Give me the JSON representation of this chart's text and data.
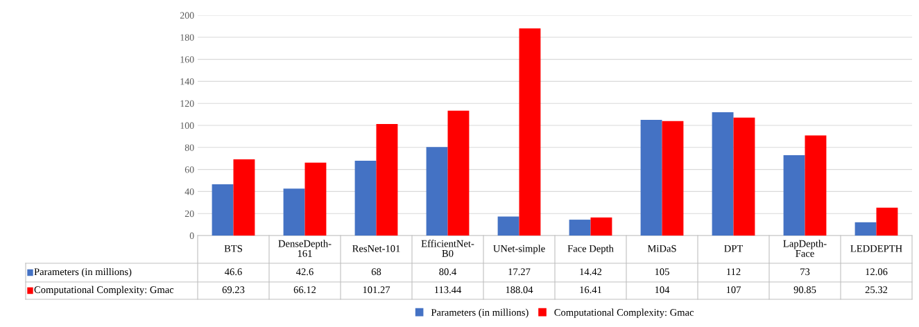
{
  "chart_data": {
    "type": "bar",
    "categories": [
      "BTS",
      "DenseDepth-161",
      "ResNet-101",
      "EfficientNet-B0",
      "UNet-simple",
      "Face Depth",
      "MiDaS",
      "DPT",
      "LapDepth-Face",
      "LEDDEPTH"
    ],
    "series": [
      {
        "name": "Parameters (in millions)",
        "color": "#4472c4",
        "values": [
          46.6,
          42.6,
          68,
          80.4,
          17.27,
          14.42,
          105,
          112,
          73,
          12.06
        ]
      },
      {
        "name": "Computational Complexity: Gmac",
        "color": "#ff0000",
        "values": [
          69.23,
          66.12,
          101.27,
          113.44,
          188.04,
          16.41,
          104,
          107,
          90.85,
          25.32
        ]
      }
    ],
    "ylim": [
      0,
      200
    ],
    "yticks": [
      0,
      20,
      40,
      60,
      80,
      100,
      120,
      140,
      160,
      180,
      200
    ],
    "grid": "y",
    "legend": "bottom",
    "data_labels": true
  }
}
